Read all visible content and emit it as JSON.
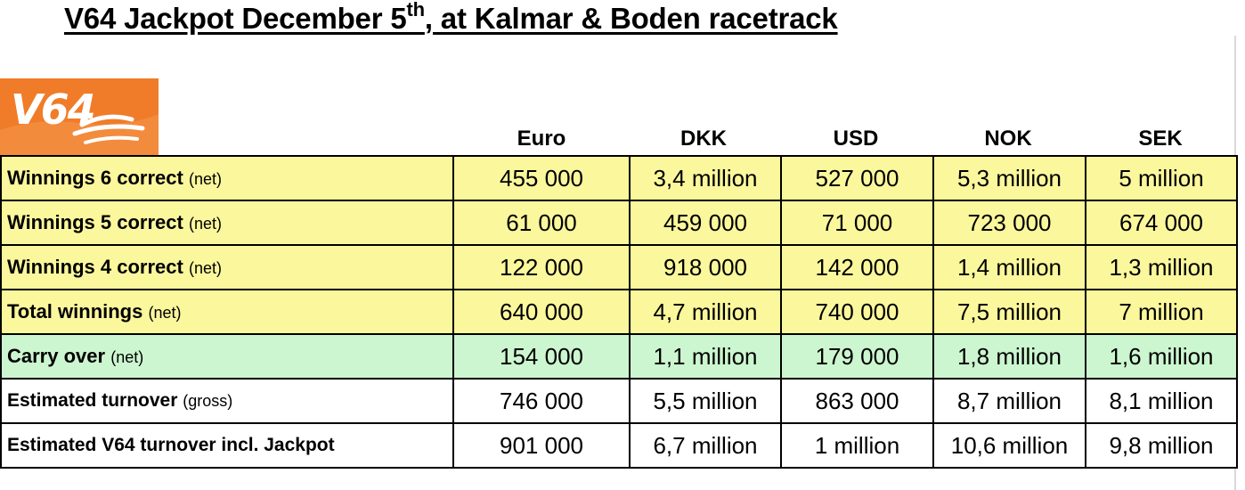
{
  "title": {
    "prefix": "V64 Jackpot December 5",
    "superscript": "th",
    "suffix": ", at Kalmar & Boden racetrack"
  },
  "logo": {
    "text": "V64",
    "color": "#f07c2a"
  },
  "columns": [
    "Euro",
    "DKK",
    "USD",
    "NOK",
    "SEK"
  ],
  "rows": [
    {
      "label": "Winnings 6 correct",
      "note": "(net)",
      "style": "yellow",
      "values": [
        "455 000",
        "3,4 million",
        "527 000",
        "5,3 million",
        "5 million"
      ]
    },
    {
      "label": "Winnings 5 correct",
      "note": "(net)",
      "style": "yellow",
      "values": [
        "61 000",
        "459 000",
        "71 000",
        "723 000",
        "674 000"
      ]
    },
    {
      "label": "Winnings 4 correct",
      "note": "(net)",
      "style": "yellow",
      "values": [
        "122 000",
        "918 000",
        "142 000",
        "1,4 million",
        "1,3 million"
      ]
    },
    {
      "label": "Total winnings",
      "note": "(net)",
      "style": "yellow",
      "values": [
        "640 000",
        "4,7 million",
        "740 000",
        "7,5 million",
        "7 million"
      ]
    },
    {
      "label": "Carry over",
      "note": "(net)",
      "style": "green",
      "values": [
        "154 000",
        "1,1 million",
        "179 000",
        "1,8 million",
        "1,6 million"
      ]
    },
    {
      "label": "Estimated turnover",
      "note": "(gross)",
      "style": "white",
      "values": [
        "746 000",
        "5,5 million",
        "863 000",
        "8,7 million",
        "8,1 million"
      ]
    },
    {
      "label": "Estimated V64 turnover incl. Jackpot",
      "note": "",
      "style": "white",
      "values": [
        "901 000",
        "6,7 million",
        "1 million",
        "10,6 million",
        "9,8 million"
      ]
    }
  ],
  "colors": {
    "yellow_row": "#fbf79c",
    "green_row": "#ccf6cf",
    "white_row": "#ffffff"
  }
}
